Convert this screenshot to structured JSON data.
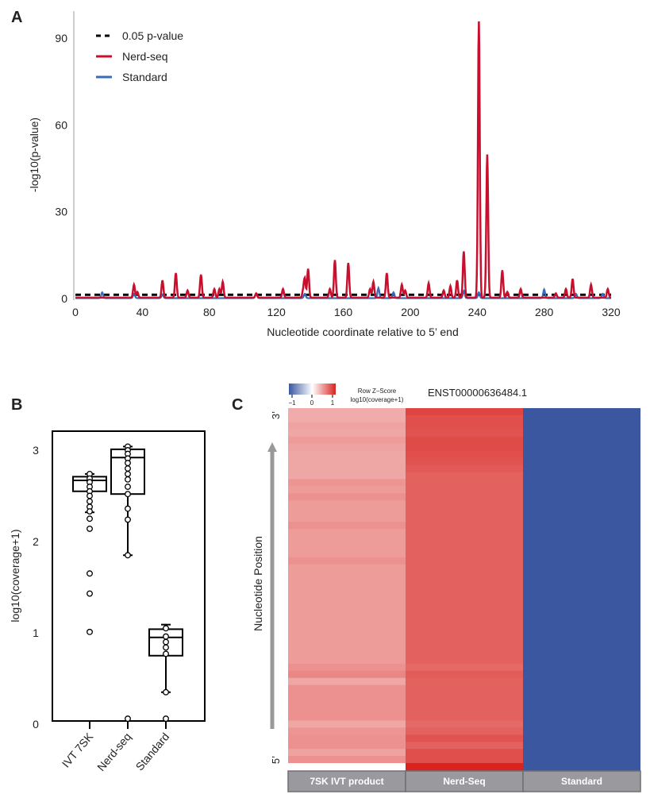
{
  "panels": {
    "a": "A",
    "b": "B",
    "c": "C"
  },
  "chart_data": [
    {
      "type": "line",
      "panel": "A",
      "xlabel": "Nucleotide coordinate relative to 5’ end",
      "ylabel": "-log10(p-value)",
      "xlim": [
        0,
        320
      ],
      "ylim": [
        0,
        100
      ],
      "xticks": [
        "0",
        "40",
        "80",
        "120",
        "160",
        "200",
        "240",
        "280",
        "320"
      ],
      "yticks": [
        "0",
        "30",
        "60",
        "90"
      ],
      "legend_position": "top-left",
      "threshold": {
        "name": "0.05 p-value",
        "value": 1.3,
        "color": "#000000",
        "style": "dashed"
      },
      "series": [
        {
          "name": "Nerd-seq",
          "color": "#c8102e",
          "peaks": [
            [
              35,
              4.5
            ],
            [
              37,
              2
            ],
            [
              52,
              6
            ],
            [
              60,
              8.5
            ],
            [
              67,
              2.5
            ],
            [
              75,
              8
            ],
            [
              83,
              3
            ],
            [
              86,
              3
            ],
            [
              88,
              5.5
            ],
            [
              108,
              1.5
            ],
            [
              124,
              3
            ],
            [
              136,
              2
            ],
            [
              137,
              6.5
            ],
            [
              139,
              10
            ],
            [
              152,
              3
            ],
            [
              155,
              13
            ],
            [
              163,
              12
            ],
            [
              176,
              3
            ],
            [
              178,
              5.5
            ],
            [
              186,
              8.5
            ],
            [
              195,
              4.5
            ],
            [
              197,
              2.5
            ],
            [
              211,
              5
            ],
            [
              220,
              2.5
            ],
            [
              224,
              4
            ],
            [
              228,
              6
            ],
            [
              232,
              16
            ],
            [
              241,
              95.5
            ],
            [
              246,
              49.5
            ],
            [
              255,
              9.5
            ],
            [
              258,
              2
            ],
            [
              266,
              3
            ],
            [
              287,
              1.5
            ],
            [
              293,
              3
            ],
            [
              297,
              6.5
            ],
            [
              308,
              4.5
            ],
            [
              318,
              3
            ]
          ]
        },
        {
          "name": "Standard",
          "color": "#3a6bb8",
          "peaks": [
            [
              16,
              2
            ],
            [
              35,
              1.5
            ],
            [
              52,
              1.2
            ],
            [
              108,
              1.5
            ],
            [
              137,
              1.5
            ],
            [
              181,
              3.5
            ],
            [
              190,
              2
            ],
            [
              232,
              2.5
            ],
            [
              241,
              2
            ],
            [
              280,
              3
            ],
            [
              299,
              1.5
            ],
            [
              315,
              1.5
            ]
          ]
        }
      ]
    },
    {
      "type": "box",
      "panel": "B",
      "ylabel": "log10(coverage+1)",
      "ylim": [
        0.03,
        3.21
      ],
      "yticks": [
        "0",
        "1",
        "2",
        "3"
      ],
      "categories": [
        "IVT 7SK",
        "Nerd-seq",
        "Standard"
      ],
      "boxes": [
        {
          "whisker_low": 2.32,
          "q1": 2.55,
          "median": 2.67,
          "q3": 2.71,
          "whisker_high": 2.74,
          "points": [
            2.74,
            2.69,
            2.65,
            2.6,
            2.55,
            2.5,
            2.44,
            2.38,
            2.33,
            2.25,
            2.14,
            1.65,
            1.43,
            1.01
          ]
        },
        {
          "whisker_low": 1.85,
          "q1": 2.52,
          "median": 2.92,
          "q3": 3.01,
          "whisker_high": 3.04,
          "points": [
            3.04,
            3.0,
            2.96,
            2.91,
            2.86,
            2.8,
            2.74,
            2.68,
            2.6,
            2.52,
            2.36,
            2.24,
            1.85,
            0.06
          ]
        },
        {
          "whisker_low": 0.35,
          "q1": 0.75,
          "median": 0.95,
          "q3": 1.04,
          "whisker_high": 1.09,
          "points": [
            1.05,
            0.96,
            0.9,
            0.84,
            0.77,
            0.35,
            0.06
          ]
        }
      ]
    },
    {
      "type": "heatmap",
      "panel": "C",
      "title": "ENST00000636484.1",
      "colorbar": {
        "title": "Row Z–Score",
        "subtitle": "log10(coverage+1)",
        "ticks": [
          "−1",
          "0",
          "1"
        ],
        "low": "#3b57a0",
        "mid": "#ffffff",
        "high": "#d8231f"
      },
      "ylabel": "Nucleotide Position",
      "top_label": "3’",
      "bottom_label": "5’",
      "columns": [
        "7SK IVT product",
        "Nerd-Seq",
        "Standard"
      ],
      "rows_top_to_bottom": {
        "7SK IVT product": [
          0.38,
          0.38,
          0.42,
          0.4,
          0.45,
          0.42,
          0.4,
          0.4,
          0.4,
          0.4,
          0.48,
          0.45,
          0.5,
          0.45,
          0.45,
          0.45,
          0.5,
          0.45,
          0.45,
          0.45,
          0.45,
          0.5,
          0.45,
          0.45,
          0.45,
          0.45,
          0.45,
          0.45,
          0.45,
          0.45,
          0.45,
          0.45,
          0.45,
          0.45,
          0.45,
          0.45,
          0.5,
          0.55,
          0.4,
          0.5,
          0.5,
          0.5,
          0.5,
          0.5,
          0.4,
          0.48,
          0.5,
          0.5,
          0.42,
          0.5,
          0.0
        ],
        "Nerd-Seq": [
          0.85,
          0.8,
          0.8,
          0.78,
          0.82,
          0.82,
          0.8,
          0.78,
          0.75,
          0.72,
          0.72,
          0.72,
          0.72,
          0.72,
          0.72,
          0.72,
          0.72,
          0.72,
          0.72,
          0.72,
          0.72,
          0.72,
          0.72,
          0.72,
          0.72,
          0.72,
          0.72,
          0.72,
          0.72,
          0.72,
          0.72,
          0.72,
          0.72,
          0.72,
          0.72,
          0.72,
          0.68,
          0.74,
          0.72,
          0.72,
          0.72,
          0.72,
          0.72,
          0.72,
          0.68,
          0.72,
          0.78,
          0.72,
          0.8,
          0.8,
          1.0
        ],
        "Standard": [
          -1,
          -1,
          -1,
          -1,
          -1,
          -1,
          -1,
          -1,
          -1,
          -1,
          -1,
          -1,
          -1,
          -1,
          -1,
          -1,
          -1,
          -1,
          -1,
          -1,
          -1,
          -1,
          -1,
          -1,
          -1,
          -1,
          -1,
          -1,
          -1,
          -1,
          -1,
          -1,
          -1,
          -1,
          -1,
          -1,
          -1,
          -1,
          -1,
          -1,
          -1,
          -1,
          -1,
          -1,
          -1,
          -1,
          -1,
          -1,
          -1,
          -1,
          -1
        ]
      }
    }
  ]
}
